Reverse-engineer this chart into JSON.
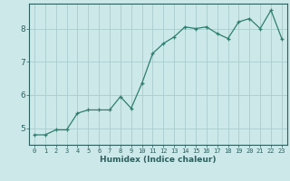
{
  "x": [
    0,
    1,
    2,
    3,
    4,
    5,
    6,
    7,
    8,
    9,
    10,
    11,
    12,
    13,
    14,
    15,
    16,
    17,
    18,
    19,
    20,
    21,
    22,
    23
  ],
  "y": [
    4.8,
    4.8,
    4.95,
    4.95,
    5.45,
    5.55,
    5.55,
    5.55,
    5.95,
    5.6,
    6.35,
    7.25,
    7.55,
    7.75,
    8.05,
    8.0,
    8.05,
    7.85,
    7.7,
    8.2,
    8.3,
    8.0,
    8.55,
    7.7
  ],
  "line_color": "#2e7f6e",
  "marker": "+",
  "marker_size": 3,
  "xlabel": "Humidex (Indice chaleur)",
  "bg_color": "#cce8e8",
  "grid_color": "#aacccc",
  "axis_color": "#2e5f5f",
  "text_color": "#2e5f5f",
  "xlim": [
    -0.5,
    23.5
  ],
  "ylim": [
    4.5,
    8.75
  ],
  "yticks": [
    5,
    6,
    7,
    8
  ],
  "xticks": [
    0,
    1,
    2,
    3,
    4,
    5,
    6,
    7,
    8,
    9,
    10,
    11,
    12,
    13,
    14,
    15,
    16,
    17,
    18,
    19,
    20,
    21,
    22,
    23
  ],
  "xlabel_fontsize": 6.5,
  "xtick_fontsize": 5.0,
  "ytick_fontsize": 6.5
}
